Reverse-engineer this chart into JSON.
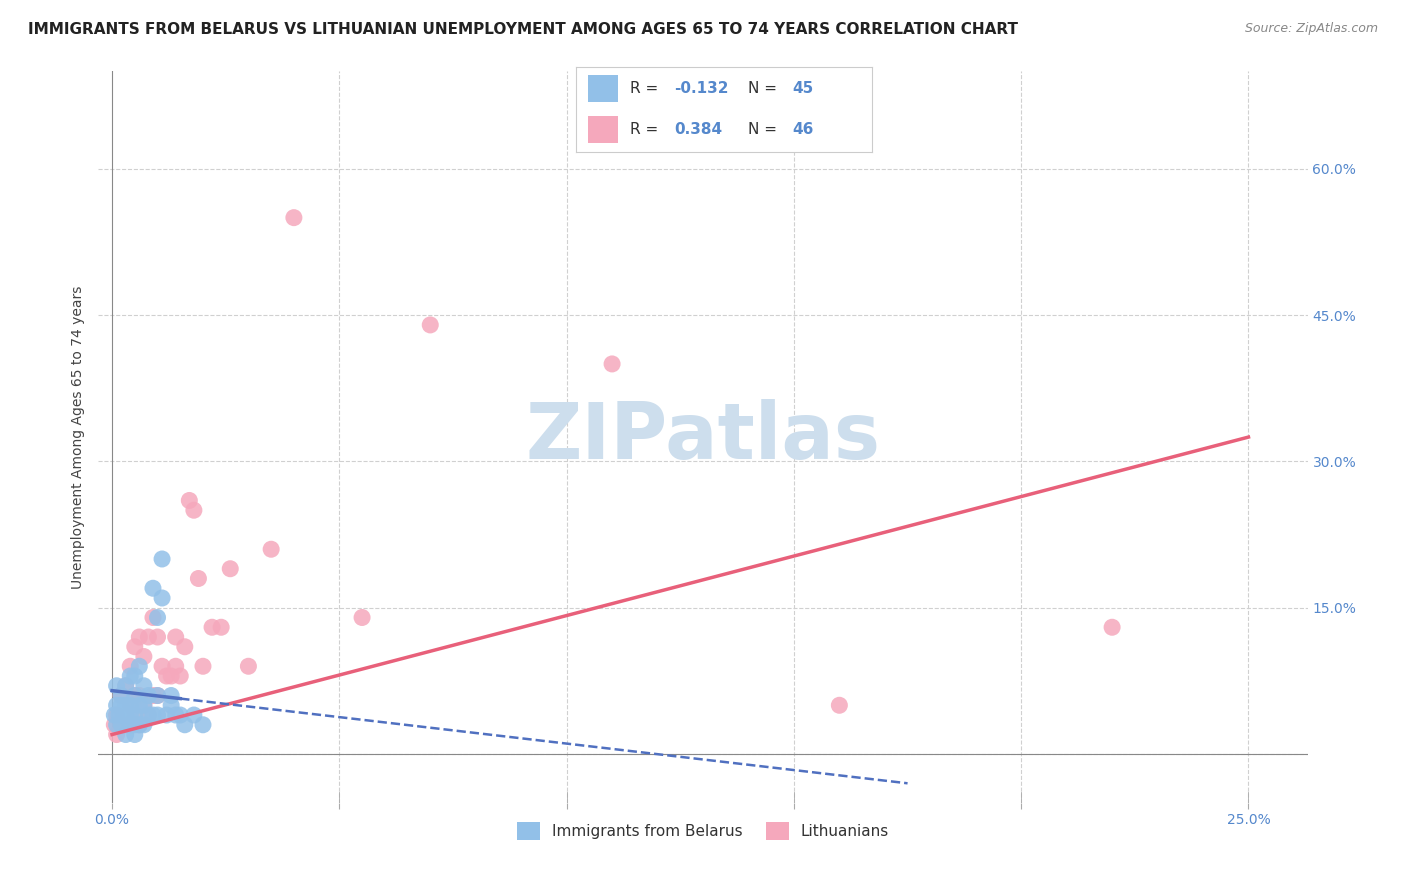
{
  "title": "IMMIGRANTS FROM BELARUS VS LITHUANIAN UNEMPLOYMENT AMONG AGES 65 TO 74 YEARS CORRELATION CHART",
  "source": "Source: ZipAtlas.com",
  "ylabel": "Unemployment Among Ages 65 to 74 years",
  "x_ticks": [
    0.0,
    0.05,
    0.1,
    0.15,
    0.2,
    0.25
  ],
  "x_tick_labels": [
    "0.0%",
    "",
    "",
    "",
    "",
    "25.0%"
  ],
  "y_ticks": [
    0.0,
    0.15,
    0.3,
    0.45,
    0.6
  ],
  "y_tick_labels_right": [
    "",
    "15.0%",
    "30.0%",
    "45.0%",
    "60.0%"
  ],
  "xlim": [
    -0.003,
    0.263
  ],
  "ylim": [
    -0.05,
    0.7
  ],
  "series1_color": "#92c0e8",
  "series2_color": "#f5a8bc",
  "line1_color": "#5070c0",
  "line2_color": "#e8607a",
  "background_color": "#ffffff",
  "grid_color": "#d0d0d0",
  "watermark": "ZIPatlas",
  "watermark_color": "#cddeed",
  "blue_scatter_x": [
    0.0005,
    0.001,
    0.001,
    0.001,
    0.0015,
    0.002,
    0.002,
    0.002,
    0.0025,
    0.003,
    0.003,
    0.003,
    0.003,
    0.004,
    0.004,
    0.004,
    0.004,
    0.005,
    0.005,
    0.005,
    0.005,
    0.005,
    0.006,
    0.006,
    0.006,
    0.007,
    0.007,
    0.007,
    0.008,
    0.008,
    0.009,
    0.009,
    0.01,
    0.01,
    0.01,
    0.011,
    0.011,
    0.012,
    0.013,
    0.013,
    0.014,
    0.015,
    0.016,
    0.018,
    0.02
  ],
  "blue_scatter_y": [
    0.04,
    0.03,
    0.05,
    0.07,
    0.04,
    0.03,
    0.05,
    0.06,
    0.04,
    0.02,
    0.04,
    0.05,
    0.07,
    0.03,
    0.04,
    0.05,
    0.08,
    0.02,
    0.03,
    0.04,
    0.06,
    0.08,
    0.03,
    0.05,
    0.09,
    0.03,
    0.05,
    0.07,
    0.04,
    0.06,
    0.04,
    0.17,
    0.04,
    0.06,
    0.14,
    0.16,
    0.2,
    0.04,
    0.05,
    0.06,
    0.04,
    0.04,
    0.03,
    0.04,
    0.03
  ],
  "pink_scatter_x": [
    0.0005,
    0.001,
    0.001,
    0.002,
    0.002,
    0.003,
    0.003,
    0.004,
    0.004,
    0.004,
    0.005,
    0.005,
    0.005,
    0.006,
    0.006,
    0.006,
    0.007,
    0.007,
    0.008,
    0.008,
    0.009,
    0.009,
    0.01,
    0.01,
    0.011,
    0.012,
    0.013,
    0.014,
    0.014,
    0.015,
    0.016,
    0.017,
    0.018,
    0.019,
    0.02,
    0.022,
    0.024,
    0.026,
    0.03,
    0.035,
    0.04,
    0.055,
    0.07,
    0.11,
    0.16,
    0.22
  ],
  "pink_scatter_y": [
    0.03,
    0.02,
    0.04,
    0.03,
    0.06,
    0.03,
    0.07,
    0.03,
    0.05,
    0.09,
    0.04,
    0.06,
    0.11,
    0.03,
    0.06,
    0.12,
    0.05,
    0.1,
    0.04,
    0.12,
    0.06,
    0.14,
    0.06,
    0.12,
    0.09,
    0.08,
    0.08,
    0.09,
    0.12,
    0.08,
    0.11,
    0.26,
    0.25,
    0.18,
    0.09,
    0.13,
    0.13,
    0.19,
    0.09,
    0.21,
    0.55,
    0.14,
    0.44,
    0.4,
    0.05,
    0.13
  ],
  "title_fontsize": 11,
  "source_fontsize": 9,
  "axis_label_fontsize": 10,
  "tick_fontsize": 10,
  "legend_fontsize": 11,
  "watermark_fontsize": 56
}
